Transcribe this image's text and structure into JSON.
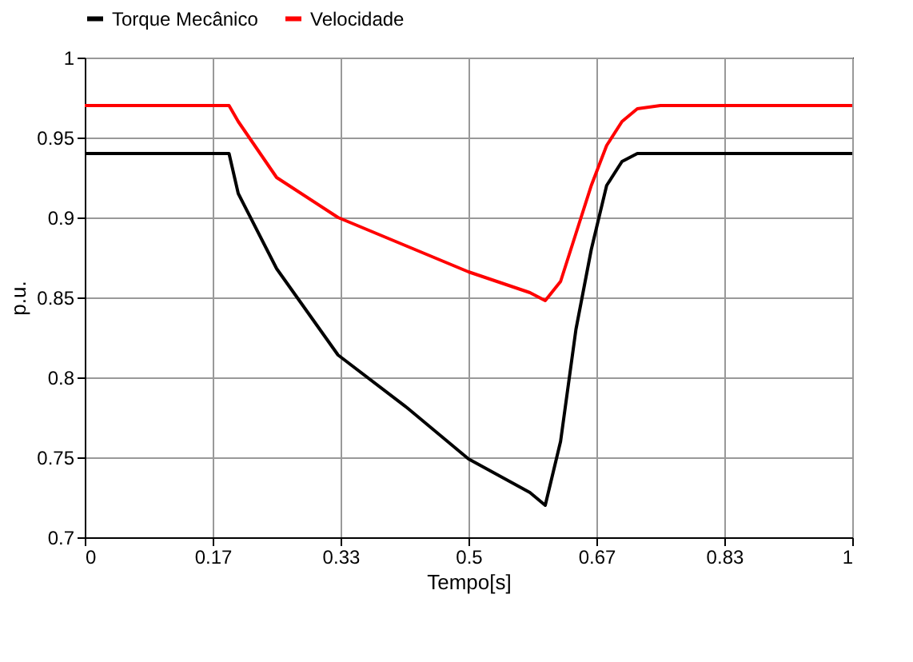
{
  "chart_data": {
    "type": "line",
    "xlabel": "Tempo[s]",
    "ylabel": "p.u.",
    "x": [
      0,
      0.1,
      0.188,
      0.2,
      0.25,
      0.33,
      0.42,
      0.5,
      0.58,
      0.6,
      0.62,
      0.64,
      0.66,
      0.68,
      0.7,
      0.72,
      0.75,
      0.85,
      1
    ],
    "series": [
      {
        "name": "Torque Mecânico",
        "color": "#000000",
        "values": [
          0.94,
          0.94,
          0.94,
          0.915,
          0.868,
          0.814,
          0.781,
          0.749,
          0.728,
          0.72,
          0.76,
          0.83,
          0.88,
          0.92,
          0.935,
          0.94,
          0.94,
          0.94,
          0.94
        ]
      },
      {
        "name": "Velocidade",
        "color": "#ff0000",
        "values": [
          0.97,
          0.97,
          0.97,
          0.96,
          0.925,
          0.9,
          0.882,
          0.866,
          0.853,
          0.848,
          0.86,
          0.89,
          0.92,
          0.945,
          0.96,
          0.968,
          0.97,
          0.97,
          0.97
        ]
      }
    ],
    "xlim": [
      0,
      1
    ],
    "ylim": [
      0.7,
      1
    ],
    "xticks": [
      0,
      {
        "value": 0.1667,
        "label": "0.17"
      },
      {
        "value": 0.3333,
        "label": "0.33"
      },
      0.5,
      {
        "value": 0.6667,
        "label": "0.67"
      },
      {
        "value": 0.8333,
        "label": "0.83"
      },
      1
    ],
    "yticks": [
      0.7,
      0.75,
      0.8,
      0.85,
      0.9,
      0.95,
      1
    ],
    "grid": true,
    "legend": "top",
    "marker": "none",
    "line_style": "solid"
  }
}
